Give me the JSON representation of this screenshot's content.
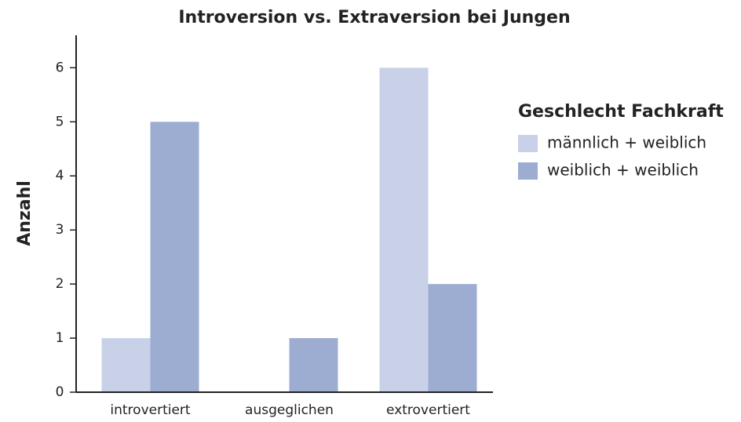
{
  "chart_data": {
    "type": "bar",
    "title": "Introversion vs. Extraversion bei Jungen",
    "y_label": "Anzahl",
    "categories": [
      "introvertiert",
      "ausgeglichen",
      "extrovertiert"
    ],
    "legend_title": "Geschlecht Fachkraft",
    "series": [
      {
        "name": "männlich + weiblich",
        "color": "#c9d1e8",
        "values": [
          1,
          0,
          6
        ]
      },
      {
        "name": "weiblich + weiblich",
        "color": "#9cadd1",
        "values": [
          5,
          1,
          2
        ]
      }
    ],
    "ylim": [
      0,
      6.6
    ],
    "yticks": [
      0,
      1,
      2,
      3,
      4,
      5,
      6
    ],
    "legend": "right"
  }
}
